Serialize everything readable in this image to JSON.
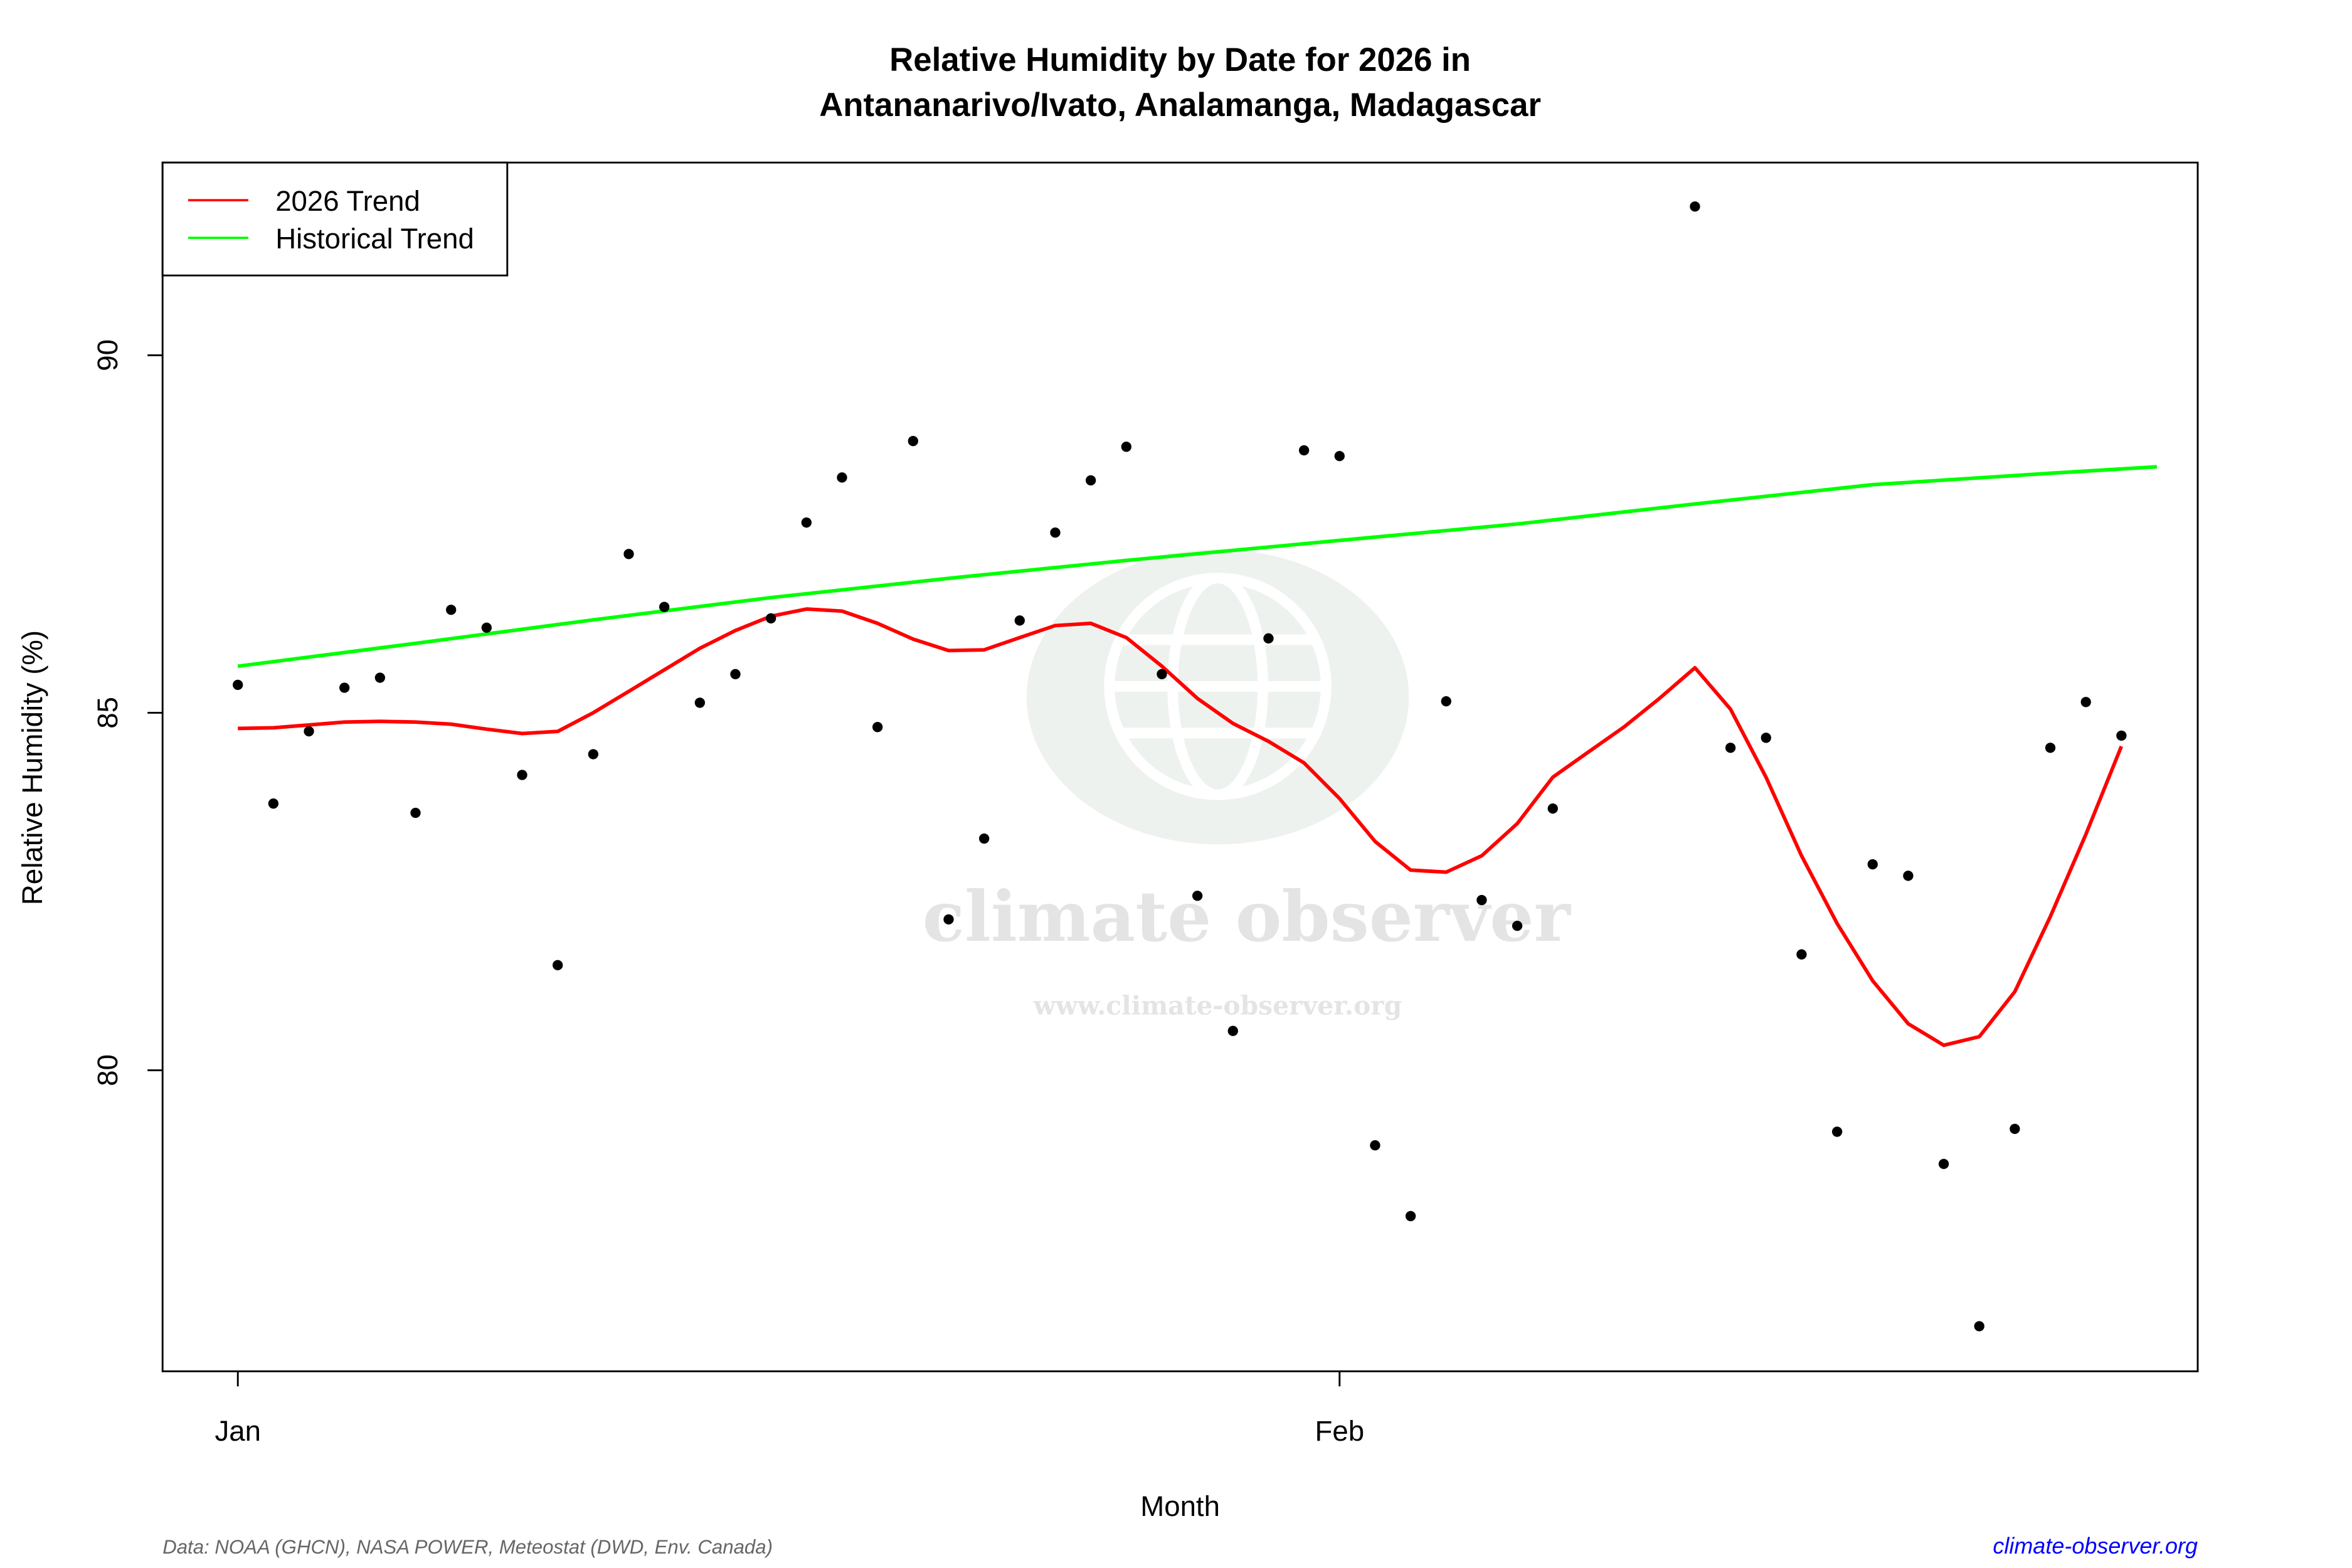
{
  "chart_data": {
    "type": "scatter",
    "title": "Relative Humidity by Date for 2026 in",
    "subtitle": "Antananarivo/Ivato, Analamanga, Madagascar",
    "xlabel": "Month",
    "ylabel": "Relative Humidity (%)",
    "x_ticks": [
      {
        "label": "Jan",
        "date": "2026-01-01"
      },
      {
        "label": "Feb",
        "date": "2026-02-01"
      }
    ],
    "y_ticks": [
      80,
      85,
      90
    ],
    "xlim": [
      "2025-12-30",
      "2026-02-24"
    ],
    "ylim": [
      75.8,
      92.7
    ],
    "grid": false,
    "legend_position": "top-left",
    "colors": {
      "points": "#000000",
      "trend_2026": "#ff0000",
      "historical": "#00ff00",
      "source_link": "#0000ff",
      "watermark": "#e8eee8"
    },
    "legend": [
      {
        "label": "2026 Trend",
        "color": "#ff0000"
      },
      {
        "label": "Historical Trend",
        "color": "#00ff00"
      }
    ],
    "points": [
      [
        "2026-01-01",
        85.39
      ],
      [
        "2026-01-02",
        83.73
      ],
      [
        "2026-01-03",
        84.74
      ],
      [
        "2026-01-04",
        85.35
      ],
      [
        "2026-01-05",
        85.49
      ],
      [
        "2026-01-06",
        83.6
      ],
      [
        "2026-01-07",
        86.44
      ],
      [
        "2026-01-08",
        86.19
      ],
      [
        "2026-01-09",
        84.13
      ],
      [
        "2026-01-10",
        81.47
      ],
      [
        "2026-01-11",
        84.42
      ],
      [
        "2026-01-12",
        87.22
      ],
      [
        "2026-01-13",
        86.48
      ],
      [
        "2026-01-14",
        85.14
      ],
      [
        "2026-01-15",
        85.54
      ],
      [
        "2026-01-16",
        86.32
      ],
      [
        "2026-01-17",
        87.66
      ],
      [
        "2026-01-18",
        88.29
      ],
      [
        "2026-01-19",
        84.8
      ],
      [
        "2026-01-20",
        88.8
      ],
      [
        "2026-01-21",
        82.11
      ],
      [
        "2026-01-22",
        83.24
      ],
      [
        "2026-01-23",
        86.29
      ],
      [
        "2026-01-24",
        87.52
      ],
      [
        "2026-01-25",
        88.25
      ],
      [
        "2026-01-26",
        88.72
      ],
      [
        "2026-01-27",
        85.54
      ],
      [
        "2026-01-28",
        82.44
      ],
      [
        "2026-01-29",
        80.55
      ],
      [
        "2026-01-30",
        86.04
      ],
      [
        "2026-01-31",
        88.67
      ],
      [
        "2026-02-01",
        88.59
      ],
      [
        "2026-02-02",
        78.95
      ],
      [
        "2026-02-03",
        77.96
      ],
      [
        "2026-02-04",
        85.16
      ],
      [
        "2026-02-05",
        82.38
      ],
      [
        "2026-02-06",
        82.02
      ],
      [
        "2026-02-07",
        83.66
      ],
      [
        "2026-02-11",
        92.08
      ],
      [
        "2026-02-12",
        84.51
      ],
      [
        "2026-02-13",
        84.65
      ],
      [
        "2026-02-14",
        81.62
      ],
      [
        "2026-02-15",
        79.14
      ],
      [
        "2026-02-16",
        82.88
      ],
      [
        "2026-02-17",
        82.72
      ],
      [
        "2026-02-18",
        78.69
      ],
      [
        "2026-02-19",
        76.42
      ],
      [
        "2026-02-20",
        79.18
      ],
      [
        "2026-02-21",
        84.51
      ],
      [
        "2026-02-22",
        85.15
      ],
      [
        "2026-02-23",
        84.68
      ]
    ],
    "series": [
      {
        "name": "2026 Trend",
        "values": [
          [
            "2026-01-01",
            84.78
          ],
          [
            "2026-01-02",
            84.79
          ],
          [
            "2026-01-03",
            84.83
          ],
          [
            "2026-01-04",
            84.87
          ],
          [
            "2026-01-05",
            84.88
          ],
          [
            "2026-01-06",
            84.87
          ],
          [
            "2026-01-07",
            84.84
          ],
          [
            "2026-01-08",
            84.77
          ],
          [
            "2026-01-09",
            84.71
          ],
          [
            "2026-01-10",
            84.74
          ],
          [
            "2026-01-11",
            85.0
          ],
          [
            "2026-01-12",
            85.3
          ],
          [
            "2026-01-13",
            85.6
          ],
          [
            "2026-01-14",
            85.9
          ],
          [
            "2026-01-15",
            86.15
          ],
          [
            "2026-01-16",
            86.35
          ],
          [
            "2026-01-17",
            86.45
          ],
          [
            "2026-01-18",
            86.42
          ],
          [
            "2026-01-19",
            86.25
          ],
          [
            "2026-01-20",
            86.03
          ],
          [
            "2026-01-21",
            85.87
          ],
          [
            "2026-01-22",
            85.88
          ],
          [
            "2026-01-23",
            86.05
          ],
          [
            "2026-01-24",
            86.22
          ],
          [
            "2026-01-25",
            86.25
          ],
          [
            "2026-01-26",
            86.05
          ],
          [
            "2026-01-27",
            85.65
          ],
          [
            "2026-01-28",
            85.2
          ],
          [
            "2026-01-29",
            84.85
          ],
          [
            "2026-01-30",
            84.6
          ],
          [
            "2026-01-31",
            84.3
          ],
          [
            "2026-02-01",
            83.8
          ],
          [
            "2026-02-02",
            83.2
          ],
          [
            "2026-02-03",
            82.8
          ],
          [
            "2026-02-04",
            82.77
          ],
          [
            "2026-02-05",
            83.0
          ],
          [
            "2026-02-06",
            83.45
          ],
          [
            "2026-02-07",
            84.1
          ],
          [
            "2026-02-08",
            84.45
          ],
          [
            "2026-02-09",
            84.8
          ],
          [
            "2026-02-10",
            85.2
          ],
          [
            "2026-02-11",
            85.63
          ],
          [
            "2026-02-12",
            85.05
          ],
          [
            "2026-02-13",
            84.1
          ],
          [
            "2026-02-14",
            83.0
          ],
          [
            "2026-02-15",
            82.05
          ],
          [
            "2026-02-16",
            81.25
          ],
          [
            "2026-02-17",
            80.65
          ],
          [
            "2026-02-18",
            80.35
          ],
          [
            "2026-02-19",
            80.47
          ],
          [
            "2026-02-20",
            81.1
          ],
          [
            "2026-02-21",
            82.15
          ],
          [
            "2026-02-22",
            83.3
          ],
          [
            "2026-02-23",
            84.53
          ]
        ]
      },
      {
        "name": "Historical Trend",
        "values": [
          [
            "2026-01-01",
            85.65
          ],
          [
            "2026-01-06",
            85.97
          ],
          [
            "2026-01-11",
            86.3
          ],
          [
            "2026-01-16",
            86.61
          ],
          [
            "2026-01-21",
            86.88
          ],
          [
            "2026-01-26",
            87.13
          ],
          [
            "2026-02-01",
            87.41
          ],
          [
            "2026-02-06",
            87.64
          ],
          [
            "2026-02-11",
            87.92
          ],
          [
            "2026-02-16",
            88.19
          ],
          [
            "2026-02-21",
            88.35
          ],
          [
            "2026-02-24",
            88.44
          ]
        ]
      }
    ],
    "watermark": {
      "name": "climate observer",
      "url": "www.climate-observer.org"
    },
    "footer": {
      "source": "Data: NOAA (GHCN), NASA POWER, Meteostat (DWD, Env. Canada)",
      "link": "climate-observer.org"
    }
  }
}
